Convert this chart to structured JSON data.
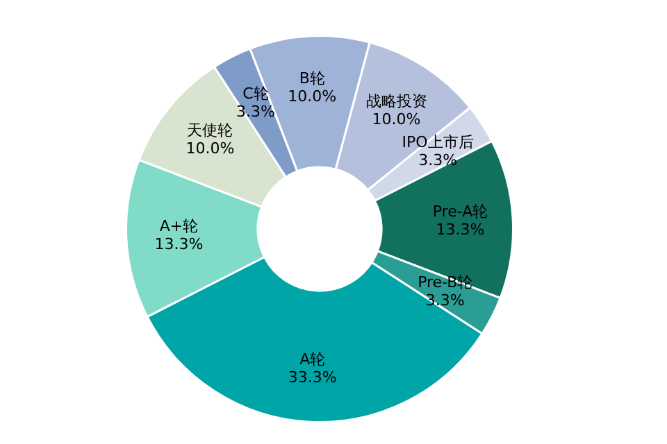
{
  "chart_data": {
    "type": "donut",
    "categories": [
      "战略投资",
      "IPO上市后",
      "Pre-A轮",
      "Pre-B轮",
      "A轮",
      "A+轮",
      "天使轮",
      "C轮",
      "B轮"
    ],
    "values": [
      10.0,
      3.3,
      13.3,
      3.3,
      33.3,
      13.3,
      10.0,
      3.3,
      10.0
    ],
    "value_labels": [
      "10.0%",
      "3.3%",
      "13.3%",
      "3.3%",
      "33.3%",
      "13.3%",
      "10.0%",
      "3.3%",
      "10.0%"
    ],
    "colors": [
      "#b4c0dc",
      "#d0d8ea",
      "#12705f",
      "#2a9d94",
      "#00a5a8",
      "#80dcc8",
      "#d9e4d0",
      "#7f9cc8",
      "#9fb3d8"
    ],
    "legend": false
  }
}
